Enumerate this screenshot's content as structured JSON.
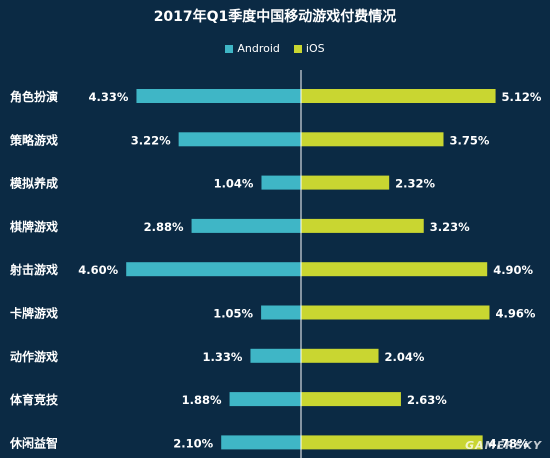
{
  "chart_data": {
    "type": "bar",
    "title": "2017年Q1季度中国移动游戏付费情况",
    "legend_position": "top-center",
    "grid": false,
    "categories": [
      "角色扮演",
      "策略游戏",
      "模拟养成",
      "棋牌游戏",
      "射击游戏",
      "卡牌游戏",
      "动作游戏",
      "体育竞技",
      "休闲益智"
    ],
    "series": [
      {
        "name": "Android",
        "color": "#3fb6c6",
        "values": [
          4.33,
          3.22,
          1.04,
          2.88,
          4.6,
          1.05,
          1.33,
          1.88,
          2.1
        ],
        "labels": [
          "4.33%",
          "3.22%",
          "1.04%",
          "2.88%",
          "4.60%",
          "1.05%",
          "1.33%",
          "1.88%",
          "2.10%"
        ]
      },
      {
        "name": "iOS",
        "color": "#c9d631",
        "values": [
          5.12,
          3.75,
          2.32,
          3.23,
          4.9,
          4.96,
          2.04,
          2.63,
          4.78
        ],
        "labels": [
          "5.12%",
          "3.75%",
          "2.32%",
          "3.23%",
          "4.90%",
          "4.96%",
          "2.04%",
          "2.63%",
          "4.78%"
        ]
      }
    ],
    "xlim": [
      0,
      6
    ]
  },
  "watermark": "GAMERSKY"
}
